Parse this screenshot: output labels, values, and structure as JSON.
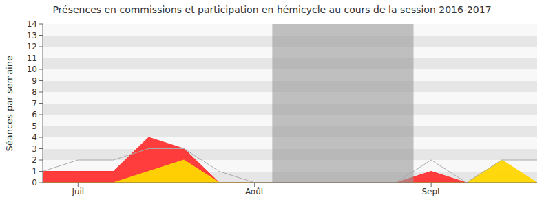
{
  "chart_data": {
    "type": "area",
    "title": "Présences en commissions et participation en hémicycle au cours de la session 2016-2017",
    "y_label": "Séances par semaine",
    "categories": [
      null,
      "Juil",
      null,
      null,
      null,
      null,
      "Août",
      null,
      null,
      null,
      null,
      "Sept",
      null,
      null,
      null
    ],
    "series": [
      {
        "type": "area",
        "color": "#ff3333",
        "values": [
          1,
          1,
          1,
          4,
          3,
          0,
          0,
          0,
          0,
          0,
          0,
          1,
          0,
          0,
          0
        ]
      },
      {
        "type": "area",
        "color": "#ffd700",
        "values": [
          0,
          0,
          0,
          1,
          2,
          0,
          0,
          0,
          0,
          0,
          0,
          0,
          0,
          2,
          0
        ]
      },
      {
        "type": "line",
        "color": "#aaaaaa",
        "values": [
          1,
          2,
          2,
          3,
          3,
          1,
          0,
          0,
          0,
          0,
          0,
          2,
          0,
          2,
          2
        ]
      }
    ],
    "shaded": [
      false,
      false,
      false,
      false,
      false,
      false,
      false,
      true,
      true,
      true,
      true,
      false,
      false,
      false,
      false
    ],
    "ylim": [
      0,
      14
    ],
    "yticks": [
      0,
      1,
      2,
      3,
      4,
      5,
      6,
      7,
      8,
      9,
      10,
      11,
      12,
      13,
      14
    ],
    "grid": true
  }
}
